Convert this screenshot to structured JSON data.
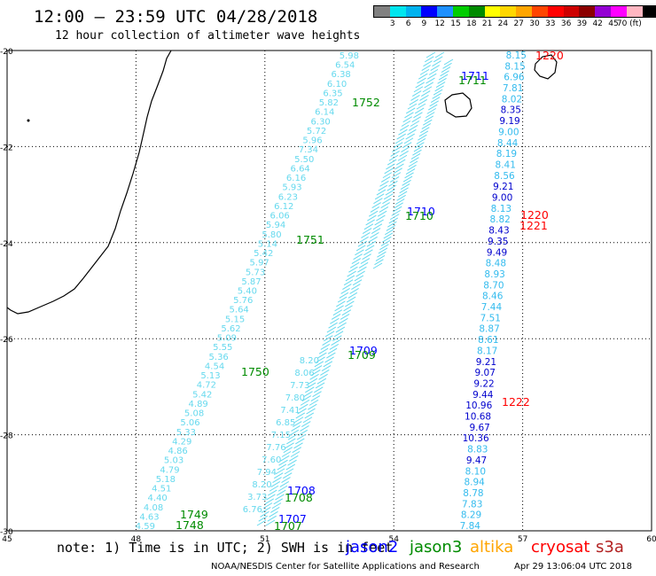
{
  "header": {
    "title": "12:00 – 23:59 UTC 04/28/2018",
    "subtitle": "12 hour collection of altimeter wave heights"
  },
  "colorbar": {
    "colors": [
      "#808080",
      "#00e5ee",
      "#00b2ee",
      "#0000ff",
      "#1e90ff",
      "#00cd00",
      "#008b00",
      "#ffff00",
      "#ffd700",
      "#ffa500",
      "#ff4500",
      "#ff0000",
      "#cd0000",
      "#8b0000",
      "#9400d3",
      "#ff00ff",
      "#ffb6c1",
      "#000000"
    ],
    "labels": [
      "3",
      "6",
      "9",
      "12",
      "15",
      "18",
      "21",
      "24",
      "27",
      "30",
      "33",
      "36",
      "39",
      "42",
      "45",
      "70 (ft)"
    ]
  },
  "axes": {
    "lon_ticks": [
      "45",
      "48",
      "51",
      "54",
      "57",
      "60"
    ],
    "lat_ticks": [
      "-20",
      "-22",
      "-24",
      "-26",
      "-28",
      "-30"
    ],
    "lon_range": [
      45,
      60
    ],
    "lat_range": [
      -30,
      -20
    ]
  },
  "tracks": {
    "track_a": {
      "color": "#66d9ee",
      "values": [
        "5.98",
        "6.54",
        "6.38",
        "6.10",
        "6.35",
        "5.82",
        "6.14",
        "6.30",
        "5.72",
        "5.96",
        "7.34",
        "5.50",
        "6.64",
        "6.16",
        "5.93",
        "6.23",
        "6.12",
        "6.06",
        "5.94",
        "5.80",
        "5.14",
        "5.42",
        "5.97",
        "5.73",
        "5.87",
        "5.40",
        "5.76",
        "5.64",
        "5.15",
        "5.62",
        "5.09",
        "5.55",
        "5.36",
        "4.54",
        "5.13",
        "4.72",
        "5.42",
        "4.89",
        "5.08",
        "5.06",
        "5.33",
        "4.29",
        "4.86",
        "5.03",
        "4.79",
        "5.18",
        "4.51",
        "4.40",
        "4.08",
        "4.63",
        "4.59"
      ]
    },
    "track_b_values": [
      "6.76",
      "3.73",
      "8.20",
      "7.94",
      "7.60",
      "7.76",
      "7.15",
      "6.85",
      "7.41",
      "7.80",
      "7.73",
      "8.06",
      "8.20"
    ],
    "track_c": {
      "values": [
        "8.15",
        "8.15",
        "6.96",
        "7.81",
        "8.02",
        "8.35",
        "9.19",
        "9.00",
        "8.44",
        "8.19",
        "8.41",
        "8.56",
        "9.21",
        "9.00",
        "8.13",
        "8.82",
        "8.43",
        "9.35",
        "9.49",
        "8.48",
        "8.93",
        "8.70",
        "8.46",
        "7.44",
        "7.51",
        "8.87",
        "8.61",
        "8.17",
        "9.21",
        "9.07",
        "9.22",
        "9.44",
        "10.96",
        "10.68",
        "9.67",
        "10.36",
        "8.83",
        "9.47",
        "8.10",
        "8.94",
        "8.78",
        "7.83",
        "8.29",
        "7.84"
      ],
      "dark_blue_indices": [
        5,
        6,
        12,
        13,
        16,
        17,
        18,
        28,
        29,
        30,
        31,
        32,
        33,
        34,
        35,
        37
      ]
    }
  },
  "pass_times": [
    {
      "text": "1220",
      "sat": "cryosat"
    },
    {
      "text": "1711",
      "sat": "jason2"
    },
    {
      "text": "1711",
      "sat": "jason3"
    },
    {
      "text": "1752",
      "sat": "jason3"
    },
    {
      "text": "1710",
      "sat": "jason2"
    },
    {
      "text": "1710",
      "sat": "jason3"
    },
    {
      "text": "1220",
      "sat": "cryosat"
    },
    {
      "text": "1221",
      "sat": "cryosat"
    },
    {
      "text": "1751",
      "sat": "jason3"
    },
    {
      "text": "1709",
      "sat": "jason2"
    },
    {
      "text": "1709",
      "sat": "jason3"
    },
    {
      "text": "1750",
      "sat": "jason3"
    },
    {
      "text": "1222",
      "sat": "cryosat"
    },
    {
      "text": "1708",
      "sat": "jason2"
    },
    {
      "text": "1708",
      "sat": "jason3"
    },
    {
      "text": "1749",
      "sat": "jason3"
    },
    {
      "text": "1748",
      "sat": "jason3"
    },
    {
      "text": "1707",
      "sat": "jason2"
    },
    {
      "text": "1707",
      "sat": "jason3"
    }
  ],
  "satellites": {
    "jason2": {
      "label": "jason2",
      "color": "#0000ff"
    },
    "jason3": {
      "label": "jason3",
      "color": "#008b00"
    },
    "altika": {
      "label": "altika",
      "color": "#ffa500"
    },
    "cryosat": {
      "label": "cryosat",
      "color": "#ff0000"
    },
    "s3a": {
      "label": "s3a",
      "color": "#b22222"
    }
  },
  "footer": {
    "note": "note: 1) Time is in UTC; 2) SWH is in feet",
    "credit": "NOAA/NESDIS Center for Satellite Applications and Research",
    "timestamp": "Apr 29 13:06:04 UTC 2018"
  }
}
